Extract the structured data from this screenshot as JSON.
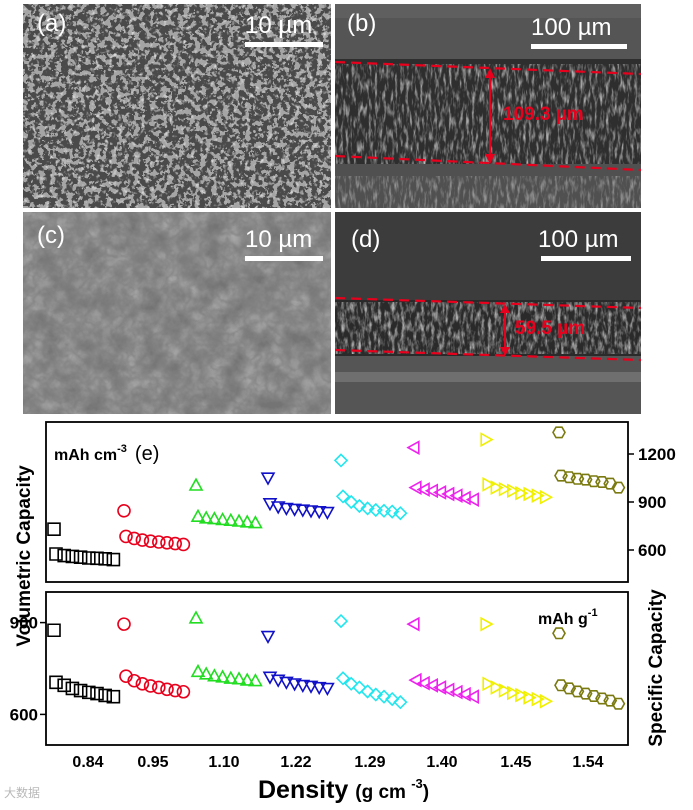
{
  "panels": {
    "a": {
      "letter": "(a)",
      "scale": "10 µm"
    },
    "b": {
      "letter": "(b)",
      "scale": "100 µm",
      "thickness": "109.3 µm"
    },
    "c": {
      "letter": "(c)",
      "scale": "10 µm"
    },
    "d": {
      "letter": "(d)",
      "scale": "100 µm",
      "thickness": "59.5 µm"
    }
  },
  "colors": {
    "red_dash": "#e8001c",
    "sem_dark": "#2a2a2a"
  },
  "watermark": "大数据",
  "chart_data": {
    "type": "scatter",
    "xlabel": "Density",
    "xunit": "(g cm",
    "xunit_sup": "-3",
    "xunit_end": ")",
    "categories": [
      "0.84",
      "0.95",
      "1.10",
      "1.22",
      "1.29",
      "1.40",
      "1.45",
      "1.54"
    ],
    "markers": [
      "square",
      "circle",
      "triangle-up",
      "triangle-down",
      "diamond",
      "triangle-left",
      "triangle-right",
      "hexagon"
    ],
    "colors": [
      "#000000",
      "#e8001c",
      "#22dd22",
      "#1010c8",
      "#22e6ee",
      "#ee22ee",
      "#f0f000",
      "#7a7a10"
    ],
    "top": {
      "ylabel": "Volumetric Capacity",
      "unit": "mAh cm",
      "unit_sup": "-3",
      "panel_label": "(e)",
      "right_label": "Specific Capacity",
      "right_ticks": [
        "600",
        "900",
        "1200"
      ],
      "ylim": [
        400,
        1400
      ],
      "series": [
        {
          "first": 730,
          "rest": [
            575,
            565,
            560,
            555,
            550,
            548,
            545,
            540
          ]
        },
        {
          "first": 845,
          "rest": [
            685,
            672,
            662,
            655,
            650,
            645,
            640,
            635
          ]
        },
        {
          "first": 1005,
          "rest": [
            810,
            800,
            795,
            790,
            785,
            780,
            775,
            770
          ]
        },
        {
          "first": 1050,
          "rest": [
            890,
            870,
            860,
            855,
            850,
            845,
            840,
            835
          ]
        },
        {
          "first": 1160,
          "rest": [
            935,
            900,
            875,
            860,
            850,
            845,
            840,
            830
          ]
        },
        {
          "first": 1240,
          "rest": [
            990,
            978,
            970,
            960,
            950,
            940,
            925,
            915
          ]
        },
        {
          "first": 1290,
          "rest": [
            1010,
            990,
            980,
            970,
            955,
            950,
            940,
            930
          ]
        },
        {
          "first": 1335,
          "rest": [
            1065,
            1055,
            1045,
            1040,
            1030,
            1025,
            1015,
            990
          ]
        }
      ]
    },
    "bottom": {
      "unit": "mAh g",
      "unit_sup": "-1",
      "left_ticks": [
        "600",
        "900"
      ],
      "ylim": [
        500,
        1000
      ],
      "series": [
        {
          "first": 875,
          "rest": [
            705,
            695,
            685,
            678,
            672,
            668,
            662,
            658
          ]
        },
        {
          "first": 895,
          "rest": [
            725,
            710,
            700,
            693,
            688,
            682,
            678,
            674
          ]
        },
        {
          "first": 915,
          "rest": [
            740,
            732,
            726,
            722,
            718,
            716,
            712,
            710
          ]
        },
        {
          "first": 855,
          "rest": [
            722,
            712,
            705,
            700,
            695,
            692,
            688,
            685
          ]
        },
        {
          "first": 905,
          "rest": [
            718,
            700,
            688,
            675,
            665,
            658,
            650,
            640
          ]
        },
        {
          "first": 895,
          "rest": [
            712,
            702,
            695,
            688,
            680,
            673,
            666,
            658
          ]
        },
        {
          "first": 895,
          "rest": [
            700,
            688,
            678,
            670,
            663,
            655,
            650,
            643
          ]
        },
        {
          "first": 865,
          "rest": [
            695,
            685,
            675,
            668,
            660,
            652,
            645,
            635
          ]
        }
      ]
    }
  }
}
